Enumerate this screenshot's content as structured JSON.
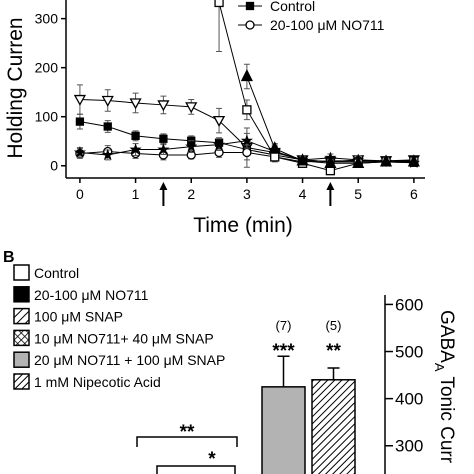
{
  "chart_data": [
    {
      "type": "line",
      "y_label": "Holding Curren",
      "x_label": "Time (min)",
      "x": [
        0,
        0.5,
        1,
        1.5,
        2,
        2.5,
        3,
        3.5,
        4,
        4.5,
        5,
        5.5,
        6
      ],
      "xlim": [
        -0.25,
        6.2
      ],
      "xticks": [
        0,
        1,
        2,
        3,
        4,
        5,
        6
      ],
      "ylim": [
        -25,
        338
      ],
      "yticks": [
        0,
        100,
        200,
        300
      ],
      "arrows_x": [
        1.5,
        4.5
      ],
      "series": [
        {
          "marker": "triangle-down-open",
          "color": "#000",
          "values": [
            135,
            133,
            128,
            124,
            120,
            92,
            37,
            27,
            12,
            8,
            12,
            10,
            12
          ],
          "errors": [
            30,
            22,
            20,
            18,
            15,
            25,
            40,
            15,
            8,
            6,
            6,
            6,
            6
          ]
        },
        {
          "name": "Control",
          "marker": "square-filled",
          "color": "#000",
          "values": [
            90,
            80,
            61,
            55,
            51,
            47,
            33,
            22,
            12,
            8,
            8,
            8,
            6
          ],
          "errors": [
            15,
            12,
            10,
            10,
            10,
            10,
            10,
            8,
            6,
            6,
            6,
            6,
            6
          ]
        },
        {
          "name": "20-100 μM NO711",
          "marker": "circle-open",
          "color": "#000",
          "values": [
            25,
            29,
            25,
            22,
            22,
            27,
            27,
            18,
            8,
            10,
            10,
            10,
            10
          ],
          "errors": [
            10,
            12,
            10,
            10,
            8,
            10,
            15,
            8,
            6,
            6,
            6,
            6,
            6
          ]
        },
        {
          "marker": "star",
          "color": "#000",
          "values": [
            27,
            22,
            33,
            33,
            39,
            43,
            51,
            29,
            12,
            16,
            12,
            8,
            6
          ],
          "errors": [
            10,
            10,
            12,
            10,
            12,
            12,
            15,
            10,
            8,
            8,
            8,
            6,
            6
          ]
        },
        {
          "marker": "square-open",
          "color": "#000",
          "values": [
            null,
            null,
            null,
            null,
            null,
            333,
            114,
            18,
            5,
            -10,
            5,
            8,
            10
          ],
          "errors": [
            null,
            null,
            null,
            null,
            null,
            100,
            20,
            10,
            8,
            8,
            8,
            8,
            8
          ]
        },
        {
          "marker": "triangle-up-filled",
          "color": "#000",
          "values": [
            null,
            null,
            null,
            null,
            null,
            null,
            182,
            35,
            10,
            5,
            5,
            8,
            8
          ],
          "errors": [
            null,
            null,
            null,
            null,
            null,
            null,
            25,
            10,
            8,
            8,
            8,
            8,
            8
          ]
        }
      ]
    },
    {
      "type": "bar",
      "panel_label": "B",
      "legend": [
        {
          "label": "Control",
          "style": "open"
        },
        {
          "label": "20-100 μM NO711",
          "style": "filled"
        },
        {
          "label": "100 μM SNAP",
          "style": "hatch"
        },
        {
          "label": "10 μM NO711+ 40 μM SNAP",
          "style": "crosshatch"
        },
        {
          "label": "20 μM NO711 + 100 μM SNAP",
          "style": "grey"
        },
        {
          "label": "1 mM Nipecotic Acid",
          "style": "hatch-dense"
        }
      ],
      "y_label": "GABA",
      "y_label_sub": "A",
      "y_label_rest": "Tonic Curr",
      "y_axis_side": "right",
      "ylim": [
        240,
        620
      ],
      "yticks": [
        300,
        400,
        500,
        600
      ],
      "categories": [
        null,
        null
      ],
      "values": [
        425,
        440
      ],
      "errors": [
        65,
        25
      ],
      "styles": [
        "grey",
        "hatch-dense"
      ],
      "n_labels": [
        "(7)",
        "(5)"
      ],
      "sig_labels": [
        "***",
        "**"
      ],
      "brackets": [
        "**",
        "*"
      ]
    }
  ]
}
